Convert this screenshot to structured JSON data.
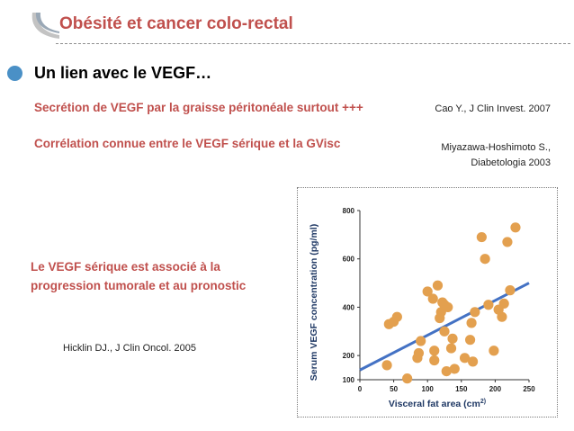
{
  "title": "Obésité et cancer colo-rectal",
  "bullet": "Un lien avec le VEGF…",
  "points": [
    {
      "text": "Secrétion de VEGF par la graisse péritonéale surtout +++",
      "ref": "Cao Y., J Clin Invest. 2007"
    },
    {
      "text": "Corrélation connue entre le VEGF sérique et la GVisc",
      "ref_line1": "Miyazawa-Hoshimoto S.,",
      "ref_line2": "Diabetologia 2003"
    }
  ],
  "claim": "Le VEGF sérique est associé à la progression tumorale et au pronostic",
  "claim_ref": "Hicklin DJ., J Clin Oncol. 2005",
  "colors": {
    "title": "#c0504d",
    "bullet": "#4a90c6",
    "points": "#e3a04f",
    "trend": "#4472c4"
  },
  "chart_data": {
    "type": "scatter",
    "xlabel": "Visceral fat area (cm",
    "xlabel_sup": "2)",
    "ylabel": "Serum VEGF concentration (pg/ml)",
    "xlim": [
      0,
      250
    ],
    "ylim": [
      100,
      800
    ],
    "x_ticks": [
      0,
      50,
      100,
      150,
      200,
      250
    ],
    "y_ticks": [
      100,
      200,
      400,
      600,
      800
    ],
    "grid": false,
    "points": [
      [
        40,
        160
      ],
      [
        43,
        330
      ],
      [
        50,
        340
      ],
      [
        55,
        360
      ],
      [
        70,
        105
      ],
      [
        85,
        190
      ],
      [
        87,
        210
      ],
      [
        90,
        260
      ],
      [
        100,
        465
      ],
      [
        108,
        435
      ],
      [
        110,
        180
      ],
      [
        110,
        220
      ],
      [
        115,
        490
      ],
      [
        118,
        355
      ],
      [
        120,
        380
      ],
      [
        122,
        420
      ],
      [
        125,
        300
      ],
      [
        125,
        410
      ],
      [
        128,
        135
      ],
      [
        130,
        400
      ],
      [
        135,
        230
      ],
      [
        137,
        270
      ],
      [
        140,
        145
      ],
      [
        155,
        190
      ],
      [
        163,
        265
      ],
      [
        165,
        335
      ],
      [
        167,
        175
      ],
      [
        170,
        380
      ],
      [
        180,
        690
      ],
      [
        185,
        600
      ],
      [
        190,
        410
      ],
      [
        198,
        220
      ],
      [
        205,
        390
      ],
      [
        210,
        360
      ],
      [
        213,
        415
      ],
      [
        218,
        670
      ],
      [
        222,
        470
      ],
      [
        230,
        730
      ]
    ],
    "trend": [
      [
        0,
        140
      ],
      [
        250,
        500
      ]
    ]
  }
}
